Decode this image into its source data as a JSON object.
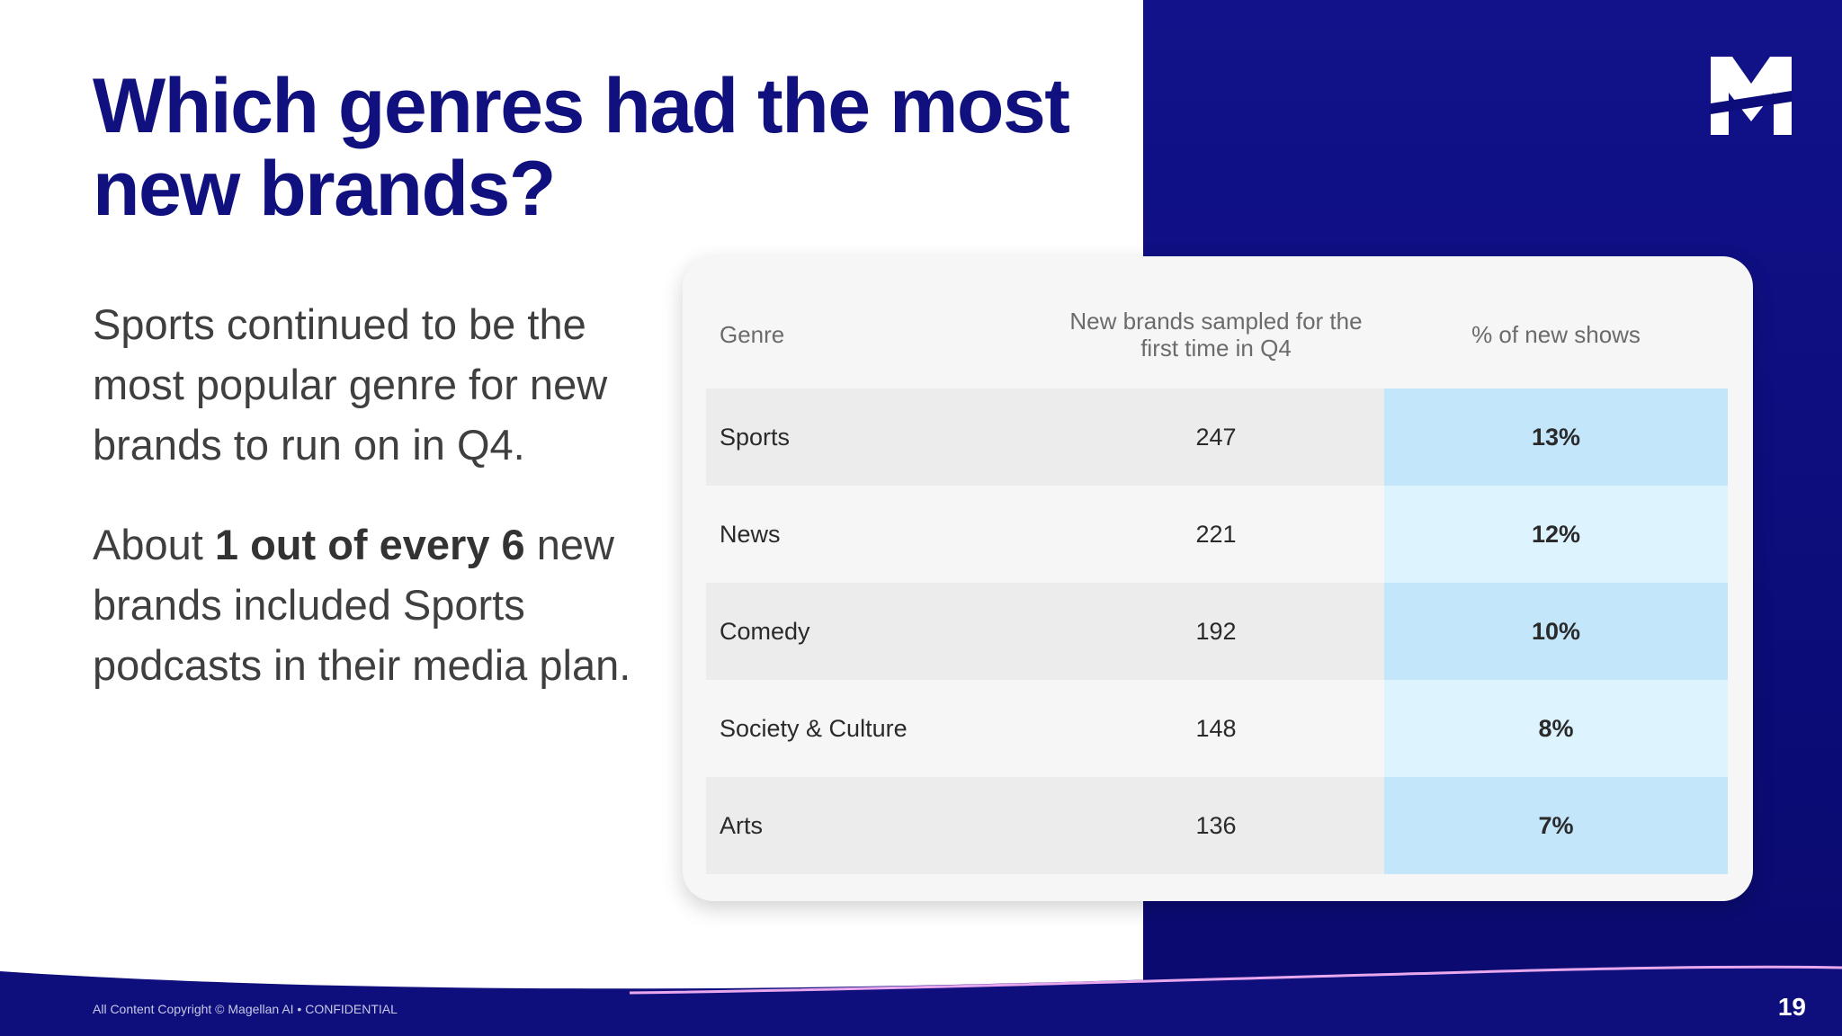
{
  "slide": {
    "title": "Which genres had the most new brands?",
    "body_paragraph_1": "Sports continued to be the most popular genre for new brands to run on in Q4.",
    "body_paragraph_2_prefix": "About ",
    "body_paragraph_2_bold": "1 out of every 6",
    "body_paragraph_2_suffix": " new brands included Sports podcasts in their media plan.",
    "logo_icon": "magellan-m-logo",
    "footer": "All Content Copyright © Magellan AI • CONFIDENTIAL",
    "page_number": "19"
  },
  "table": {
    "headers": {
      "genre": "Genre",
      "new_brands": "New brands sampled for the first time in Q4",
      "pct_new_shows": "% of new shows"
    },
    "rows": [
      {
        "genre": "Sports",
        "new_brands": "247",
        "pct": "13%"
      },
      {
        "genre": "News",
        "new_brands": "221",
        "pct": "12%"
      },
      {
        "genre": "Comedy",
        "new_brands": "192",
        "pct": "10%"
      },
      {
        "genre": "Society & Culture",
        "new_brands": "148",
        "pct": "8%"
      },
      {
        "genre": "Arts",
        "new_brands": "136",
        "pct": "7%"
      }
    ]
  },
  "colors": {
    "brand_navy": "#10107e",
    "panel_navy": "#0c0c7a",
    "highlight_blue": "#c3e6fb",
    "highlight_light_blue": "#ddf3fe",
    "accent_pink": "#e9a8ee"
  }
}
